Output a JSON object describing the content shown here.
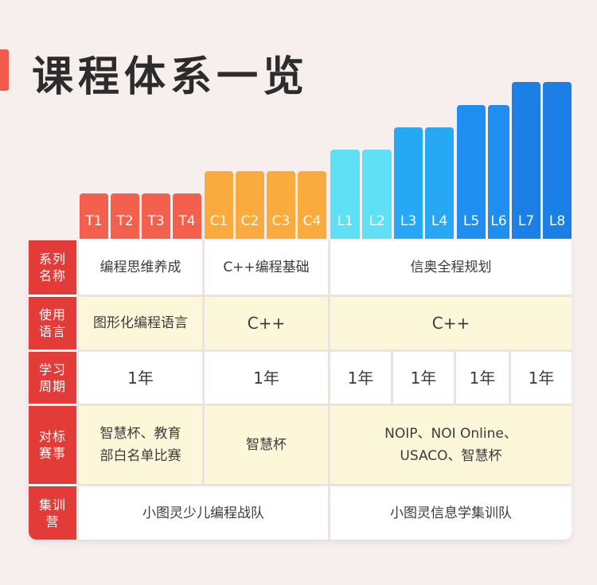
{
  "header": {
    "title": "课程体系一览"
  },
  "colors": {
    "accent": "#f25a4a",
    "header_red": "#e33b37",
    "level_orange": "#fbab3d",
    "level_red": "#f3614e",
    "level_cyan": "#5fe0f5",
    "level_blue": "#1e8ef0"
  },
  "levels": [
    "T1",
    "T2",
    "T3",
    "T4",
    "C1",
    "C2",
    "C3",
    "C4",
    "L1",
    "L2",
    "L3",
    "L4",
    "L5",
    "L6",
    "L7",
    "L8"
  ],
  "table": {
    "series": {
      "label": "系列\n名称",
      "values": [
        "编程思维养成",
        "C++编程基础",
        "信奥全程规划"
      ]
    },
    "language": {
      "label": "使用\n语言",
      "values": [
        "图形化编程语言",
        "C++",
        "C++"
      ]
    },
    "period": {
      "label": "学习\n周期",
      "values": [
        "1年",
        "1年",
        "1年",
        "1年",
        "1年",
        "1年"
      ]
    },
    "competition": {
      "label": "对标\n赛事",
      "values": [
        "智慧杯、教育\n部白名单比赛",
        "智慧杯",
        "NOIP、NOI Online、\nUSACO、智慧杯"
      ]
    },
    "camp": {
      "label": "集训\n营",
      "values": [
        "小图灵少儿编程战队",
        "小图灵信息学集训队"
      ]
    }
  }
}
